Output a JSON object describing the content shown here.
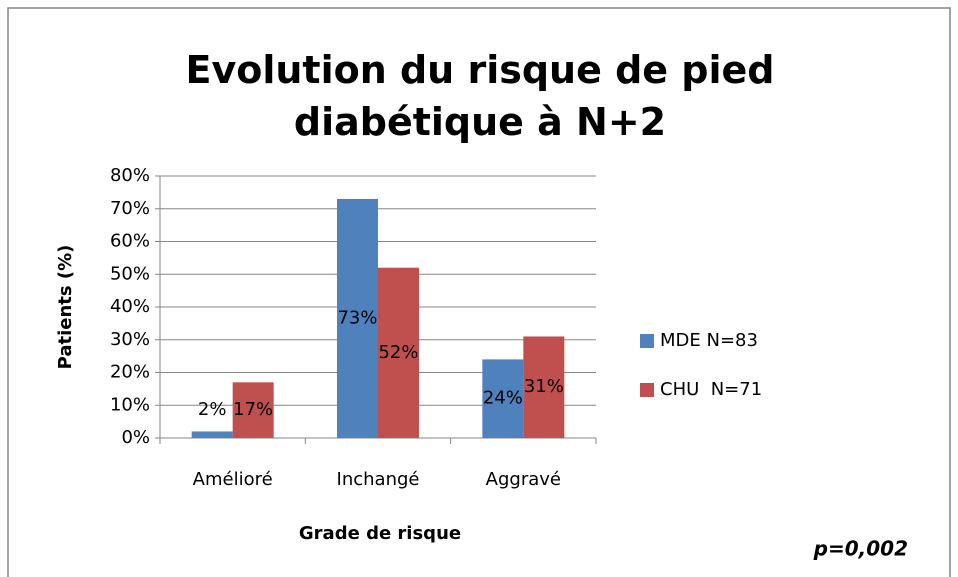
{
  "chart_data": {
    "type": "bar",
    "title": "Evolution du risque de pied diabétique à N+2",
    "y_label": "Patients (%)",
    "x_label": "Grade de risque",
    "annotation": "p=0,002",
    "categories": [
      "Amélioré",
      "Inchangé",
      "Aggravé"
    ],
    "series": [
      {
        "name": "MDE N=83",
        "color": "#4f81bd",
        "values": [
          2,
          73,
          24
        ],
        "value_labels": [
          "2%",
          "73%",
          "24%"
        ]
      },
      {
        "name": "CHU  N=71",
        "color": "#c0504d",
        "values": [
          17,
          52,
          31
        ],
        "value_labels": [
          "17%",
          "52%",
          "31%"
        ]
      }
    ],
    "ylim": [
      0,
      80
    ],
    "yticks": [
      {
        "value": 0,
        "label": "0%"
      },
      {
        "value": 10,
        "label": "10%"
      },
      {
        "value": 20,
        "label": "20%"
      },
      {
        "value": 30,
        "label": "30%"
      },
      {
        "value": 40,
        "label": "40%"
      },
      {
        "value": 50,
        "label": "50%"
      },
      {
        "value": 60,
        "label": "60%"
      },
      {
        "value": 70,
        "label": "70%"
      },
      {
        "value": 80,
        "label": "80%"
      }
    ],
    "grid": true,
    "legend": "right"
  }
}
